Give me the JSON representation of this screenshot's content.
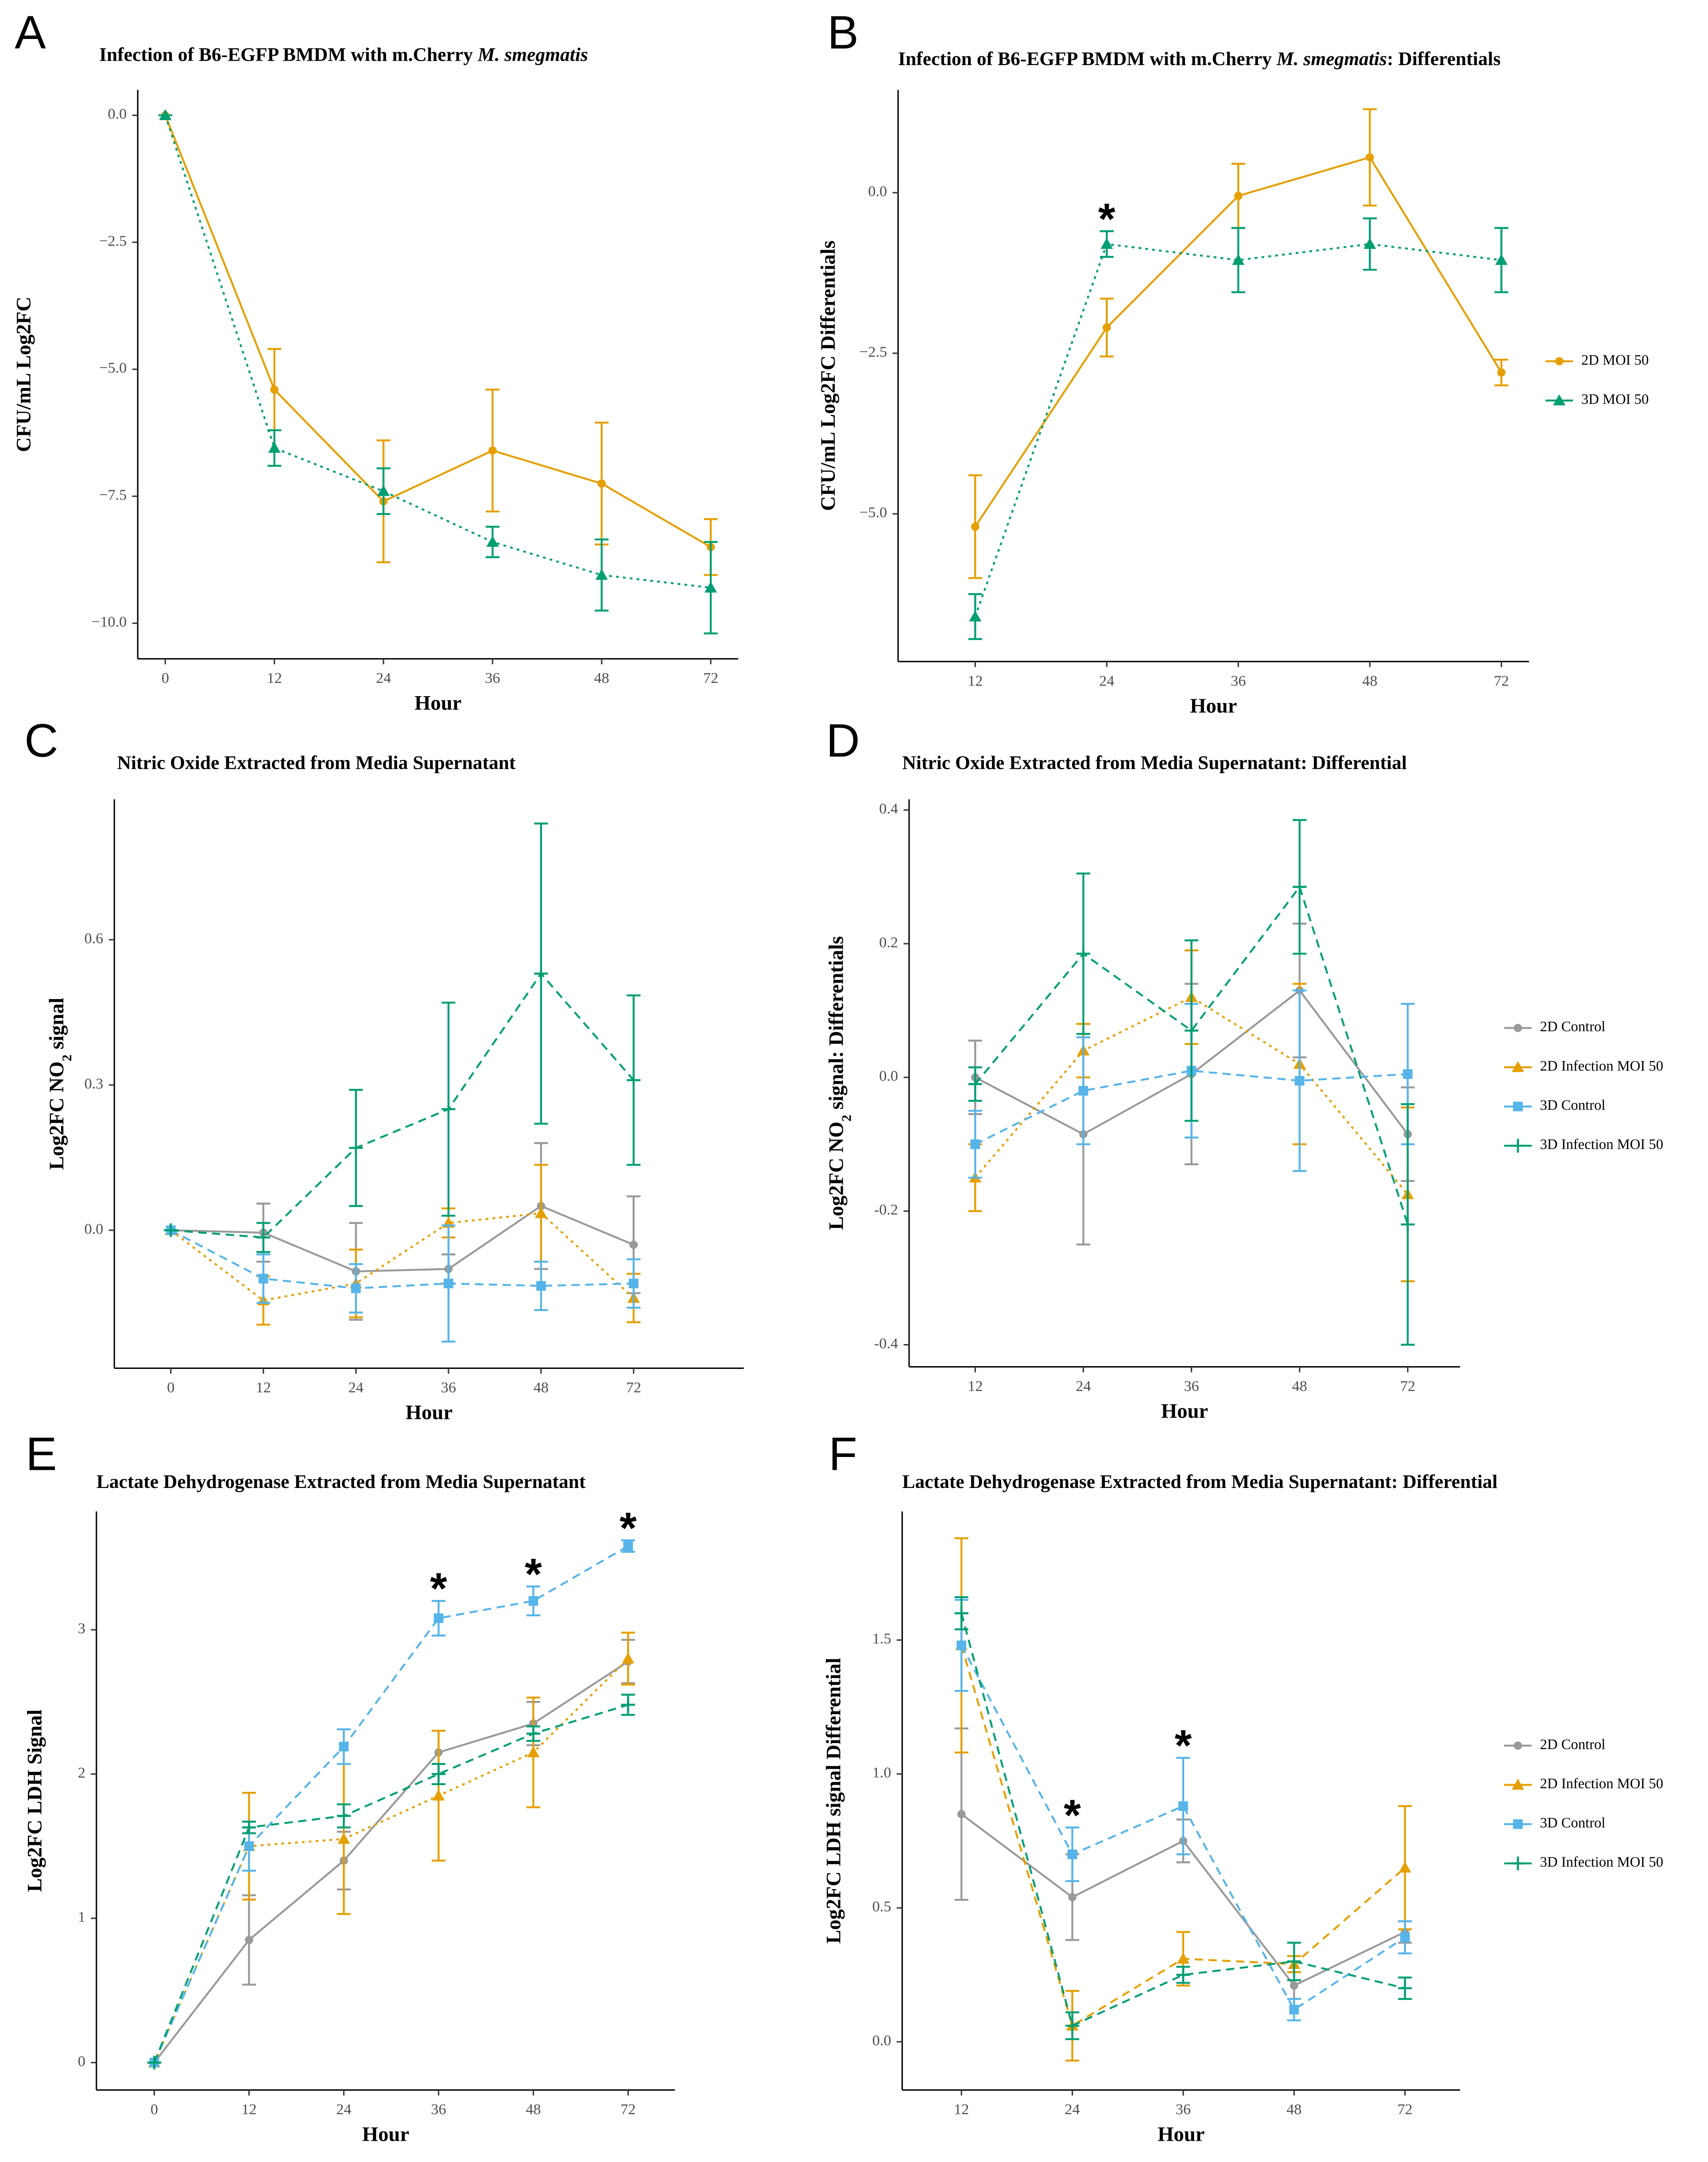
{
  "chart_data": [
    {
      "type": "line",
      "panel": "A",
      "title": [
        {
          "text": "Infection of B6-EGFP BMDM with m.Cherry "
        },
        {
          "text": "M. smegmatis",
          "italic": true
        }
      ],
      "xlabel": "Hour",
      "ylabel": "CFU/mL Log2FC",
      "categories": [
        0,
        12,
        24,
        36,
        48,
        72
      ],
      "ylim": [
        -10.7,
        0.5
      ],
      "yticks": [
        {
          "value": -10,
          "label": "−10.0"
        },
        {
          "value": -7.5,
          "label": "−7.5"
        },
        {
          "value": -5,
          "label": "−5.0"
        },
        {
          "value": -2.5,
          "label": "−2.5"
        },
        {
          "value": 0,
          "label": "0.0"
        }
      ],
      "legend": "none",
      "series": [
        {
          "color": "#E69F00",
          "dash": "solid",
          "marker": "circle",
          "values": [
            0,
            -5.4,
            -7.6,
            -6.6,
            -7.25,
            -8.5
          ],
          "errors": [
            0,
            0.8,
            1.2,
            1.2,
            1.2,
            0.55
          ]
        },
        {
          "color": "#009E73",
          "dash": "dotted",
          "marker": "triangle",
          "values": [
            0,
            -6.55,
            -7.4,
            -8.4,
            -9.05,
            -9.3
          ],
          "errors": [
            0,
            0.35,
            0.45,
            0.3,
            0.7,
            0.9
          ]
        }
      ]
    },
    {
      "type": "line",
      "panel": "B",
      "title": [
        {
          "text": "Infection of B6-EGFP BMDM with m.Cherry "
        },
        {
          "text": "M. smegmatis",
          "italic": true
        },
        {
          "text": ": Differentials"
        }
      ],
      "xlabel": "Hour",
      "ylabel": "CFU/mL Log2FC Differentials",
      "categories": [
        12,
        24,
        36,
        48,
        72
      ],
      "ylim": [
        -7.3,
        1.6
      ],
      "yticks": [
        {
          "value": -5,
          "label": "−5.0"
        },
        {
          "value": -2.5,
          "label": "−2.5"
        },
        {
          "value": 0,
          "label": "0.0"
        }
      ],
      "legend": "right",
      "annotations": [
        {
          "text": "*",
          "x": 24
        }
      ],
      "series": [
        {
          "name": "2D MOI 50",
          "color": "#E69F00",
          "dash": "solid",
          "marker": "circle",
          "values": [
            -5.2,
            -2.1,
            -0.05,
            0.55,
            -2.8
          ],
          "errors": [
            0.8,
            0.45,
            0.5,
            0.75,
            0.2
          ]
        },
        {
          "name": "3D MOI 50",
          "color": "#009E73",
          "dash": "dotted",
          "marker": "triangle",
          "values": [
            -6.6,
            -0.8,
            -1.05,
            -0.8,
            -1.05
          ],
          "errors": [
            0.35,
            0.2,
            0.5,
            0.4,
            0.5
          ]
        }
      ]
    },
    {
      "type": "line",
      "panel": "C",
      "title": [
        {
          "text": "Nitric Oxide Extracted from Media Supernatant"
        }
      ],
      "xlabel": "Hour",
      "ylabel": [
        {
          "text": "Log2FC NO"
        },
        {
          "text": "2",
          "sub": true
        },
        {
          "text": " signal"
        }
      ],
      "categories": [
        0,
        12,
        24,
        36,
        48,
        72
      ],
      "ylim": [
        -0.285,
        0.89
      ],
      "yticks": [
        {
          "value": 0,
          "label": "0.0"
        },
        0.3,
        0.6
      ],
      "legend": "none",
      "series": [
        {
          "color": "#999999",
          "dash": "solid",
          "marker": "circle",
          "values": [
            0,
            -0.005,
            -0.085,
            -0.08,
            0.05,
            -0.03
          ],
          "errors": [
            0,
            0.06,
            0.1,
            0.03,
            0.13,
            0.1
          ]
        },
        {
          "color": "#E69F00",
          "dash": "dotted",
          "marker": "triangle",
          "values": [
            0,
            -0.145,
            -0.11,
            0.015,
            0.035,
            -0.14
          ],
          "errors": [
            0,
            0.05,
            0.07,
            0.03,
            0.1,
            0.05
          ]
        },
        {
          "color": "#56B4E9",
          "dash": "dashed",
          "marker": "square",
          "values": [
            0,
            -0.1,
            -0.12,
            -0.11,
            -0.115,
            -0.11
          ],
          "errors": [
            0,
            0.05,
            0.05,
            0.12,
            0.05,
            0.05
          ]
        },
        {
          "color": "#009E73",
          "dash": "dashed",
          "marker": "plus",
          "values": [
            0,
            -0.015,
            0.17,
            0.25,
            0.53,
            0.31
          ],
          "errors": [
            0,
            0.03,
            0.12,
            0.22,
            0.31,
            0.175
          ]
        }
      ]
    },
    {
      "type": "line",
      "panel": "D",
      "title": [
        {
          "text": "Nitric Oxide Extracted from Media Supernatant: Differential"
        }
      ],
      "xlabel": "Hour",
      "ylabel": [
        {
          "text": "Log2FC NO"
        },
        {
          "text": "2",
          "sub": true
        },
        {
          "text": " signal: Differentials"
        }
      ],
      "categories": [
        12,
        24,
        36,
        48,
        72
      ],
      "ylim": [
        -0.433,
        0.416
      ],
      "yticks": [
        -0.4,
        -0.2,
        {
          "value": 0,
          "label": "0.0"
        },
        0.2,
        0.4
      ],
      "legend": "right",
      "series": [
        {
          "name": "2D Control",
          "color": "#999999",
          "dash": "solid",
          "marker": "circle",
          "values": [
            0,
            -0.085,
            0.005,
            0.13,
            -0.085
          ],
          "errors": [
            0.055,
            0.165,
            0.135,
            0.1,
            0.07
          ]
        },
        {
          "name": "2D Infection MOI 50",
          "color": "#E69F00",
          "dash": "dotted",
          "marker": "triangle",
          "values": [
            -0.15,
            0.04,
            0.12,
            0.02,
            -0.175
          ],
          "errors": [
            0.05,
            0.04,
            0.07,
            0.12,
            0.13
          ]
        },
        {
          "name": "3D Control",
          "color": "#56B4E9",
          "dash": "dashed",
          "marker": "square",
          "values": [
            -0.1,
            -0.02,
            0.01,
            -0.005,
            0.005
          ],
          "errors": [
            0.05,
            0.08,
            0.1,
            0.135,
            0.105
          ]
        },
        {
          "name": "3D Infection MOI 50",
          "color": "#009E73",
          "dash": "dashed",
          "marker": "plus",
          "values": [
            -0.01,
            0.185,
            0.07,
            0.285,
            -0.22
          ],
          "errors": [
            0.025,
            0.12,
            0.135,
            0.1,
            0.18
          ]
        }
      ]
    },
    {
      "type": "line",
      "panel": "E",
      "title": [
        {
          "text": "Lactate Dehydrogenase Extracted from Media Supernatant"
        }
      ],
      "xlabel": "Hour",
      "ylabel": "Log2FC LDH Signal",
      "categories": [
        0,
        12,
        24,
        36,
        48,
        72
      ],
      "ylim": [
        -0.19,
        3.82
      ],
      "yticks": [
        0,
        1,
        2,
        3
      ],
      "legend": "none",
      "annotations": [
        {
          "text": "*",
          "x": 36
        },
        {
          "text": "*",
          "x": 48
        },
        {
          "text": "*",
          "x": 72
        }
      ],
      "series": [
        {
          "color": "#999999",
          "dash": "solid",
          "marker": "circle",
          "values": [
            0,
            0.85,
            1.4,
            2.15,
            2.35,
            2.78
          ],
          "errors": [
            0,
            0.31,
            0.2,
            0.15,
            0.15,
            0.15
          ]
        },
        {
          "color": "#E69F00",
          "dash": "dotted",
          "marker": "triangle",
          "values": [
            0,
            1.5,
            1.55,
            1.85,
            2.15,
            2.8
          ],
          "errors": [
            0,
            0.37,
            0.52,
            0.45,
            0.38,
            0.18
          ]
        },
        {
          "color": "#56B4E9",
          "dash": "dashed",
          "marker": "square",
          "values": [
            0,
            1.5,
            2.19,
            3.08,
            3.2,
            3.58
          ],
          "errors": [
            0,
            0.17,
            0.12,
            0.12,
            0.1,
            0.04
          ]
        },
        {
          "color": "#009E73",
          "dash": "dashed",
          "marker": "plus",
          "values": [
            0,
            1.63,
            1.71,
            2.0,
            2.28,
            2.48
          ],
          "errors": [
            0,
            0.04,
            0.08,
            0.07,
            0.05,
            0.07
          ]
        }
      ]
    },
    {
      "type": "line",
      "panel": "F",
      "title": [
        {
          "text": "Lactate Dehydrogenase Extracted from Media Supernatant: Differential"
        }
      ],
      "xlabel": "Hour",
      "ylabel": "Log2FC LDH signal Differential",
      "categories": [
        12,
        24,
        36,
        48,
        72
      ],
      "ylim": [
        -0.18,
        1.98
      ],
      "yticks": [
        {
          "value": 0,
          "label": "0.0"
        },
        0.5,
        {
          "value": 1,
          "label": "1.0"
        },
        1.5
      ],
      "legend": "right",
      "annotations": [
        {
          "text": "*",
          "x": 24
        },
        {
          "text": "*",
          "x": 36
        }
      ],
      "series": [
        {
          "name": "2D Control",
          "color": "#999999",
          "dash": "solid",
          "marker": "circle",
          "values": [
            0.85,
            0.54,
            0.75,
            0.21,
            0.41
          ],
          "errors": [
            0.32,
            0.16,
            0.08,
            0.05,
            0.04
          ]
        },
        {
          "name": "2D Infection MOI 50",
          "color": "#E69F00",
          "dash": "dashed",
          "marker": "triangle",
          "values": [
            1.48,
            0.06,
            0.31,
            0.29,
            0.65
          ],
          "errors": [
            0.4,
            0.13,
            0.1,
            0.03,
            0.23
          ]
        },
        {
          "name": "3D Control",
          "color": "#56B4E9",
          "dash": "dashed",
          "marker": "square",
          "values": [
            1.48,
            0.7,
            0.88,
            0.12,
            0.39
          ],
          "errors": [
            0.17,
            0.1,
            0.18,
            0.04,
            0.06
          ]
        },
        {
          "name": "3D Infection MOI 50",
          "color": "#009E73",
          "dash": "dashed",
          "marker": "plus",
          "values": [
            1.6,
            0.06,
            0.25,
            0.3,
            0.2
          ],
          "errors": [
            0.06,
            0.05,
            0.03,
            0.07,
            0.04
          ]
        }
      ]
    }
  ]
}
